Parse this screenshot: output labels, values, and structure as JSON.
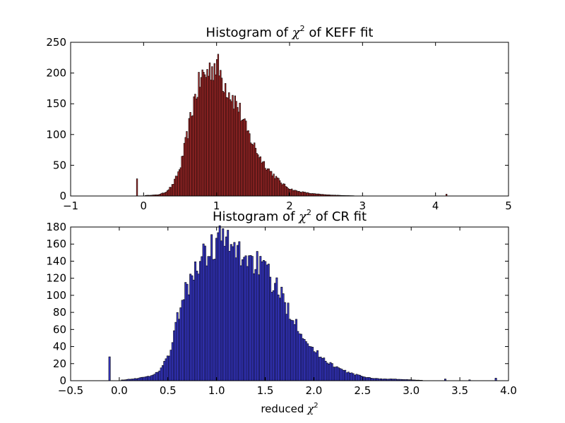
{
  "chart_data": [
    {
      "type": "bar",
      "title_pre": "Histogram of ",
      "title_sym": "χ",
      "title_sup": "2",
      "title_post": " of KEFF fit",
      "xlabel_pre": "",
      "xlabel_sym": "",
      "xlabel_sup": "",
      "xlim": [
        -1,
        5
      ],
      "ylim": [
        0,
        250
      ],
      "xticks": [
        "−1",
        "0",
        "1",
        "2",
        "3",
        "4",
        "5"
      ],
      "xtick_values": [
        -1,
        0,
        1,
        2,
        3,
        4,
        5
      ],
      "yticks": [
        "0",
        "50",
        "100",
        "150",
        "200",
        "250"
      ],
      "ytick_values": [
        0,
        50,
        100,
        150,
        200,
        250
      ],
      "bar_color": "#b82e2e",
      "outlier_bars": {
        "x": [
          -0.09,
          4.15
        ],
        "values": [
          28,
          3
        ]
      },
      "profile": {
        "x": [
          0.05,
          0.2,
          0.3,
          0.4,
          0.5,
          0.6,
          0.7,
          0.8,
          0.85,
          0.9,
          1.0,
          1.05,
          1.1,
          1.2,
          1.3,
          1.4,
          1.5,
          1.6,
          1.7,
          1.8,
          1.9,
          2.0,
          2.1,
          2.2,
          2.3,
          2.5,
          2.7,
          3.0
        ],
        "values": [
          1,
          2,
          6,
          18,
          45,
          100,
          160,
          195,
          198,
          205,
          215,
          200,
          185,
          165,
          145,
          110,
          85,
          62,
          45,
          32,
          20,
          12,
          8,
          6,
          4,
          2,
          1,
          0
        ]
      },
      "bar_range": [
        0.02,
        3.0
      ],
      "n_bars": 180
    },
    {
      "type": "bar",
      "title_pre": "Histogram of ",
      "title_sym": "χ",
      "title_sup": "2",
      "title_post": " of CR fit",
      "xlabel_pre": "reduced ",
      "xlabel_sym": "χ",
      "xlabel_sup": "2",
      "xlim": [
        -0.5,
        4.0
      ],
      "ylim": [
        0,
        180
      ],
      "xticks": [
        "−0.5",
        "0.0",
        "0.5",
        "1.0",
        "1.5",
        "2.0",
        "2.5",
        "3.0",
        "3.5",
        "4.0"
      ],
      "xtick_values": [
        -0.5,
        0.0,
        0.5,
        1.0,
        1.5,
        2.0,
        2.5,
        3.0,
        3.5,
        4.0
      ],
      "yticks": [
        "0",
        "20",
        "40",
        "60",
        "80",
        "100",
        "120",
        "140",
        "160",
        "180"
      ],
      "ytick_values": [
        0,
        20,
        40,
        60,
        80,
        100,
        120,
        140,
        160,
        180
      ],
      "bar_color": "#3838cc",
      "outlier_bars": {
        "x": [
          -0.1,
          3.35,
          3.6,
          3.87
        ],
        "values": [
          28,
          2,
          1,
          3
        ]
      },
      "profile": {
        "x": [
          0.05,
          0.2,
          0.3,
          0.4,
          0.5,
          0.55,
          0.6,
          0.7,
          0.8,
          0.9,
          1.0,
          1.05,
          1.1,
          1.2,
          1.3,
          1.4,
          1.5,
          1.6,
          1.7,
          1.8,
          1.9,
          2.0,
          2.1,
          2.2,
          2.3,
          2.4,
          2.5,
          2.6,
          2.7,
          2.8,
          3.0,
          3.2
        ],
        "values": [
          1,
          3,
          5,
          10,
          28,
          45,
          75,
          110,
          135,
          150,
          162,
          170,
          160,
          152,
          145,
          140,
          128,
          112,
          92,
          72,
          52,
          35,
          26,
          18,
          12,
          8,
          5,
          3,
          2,
          2,
          1,
          0
        ]
      },
      "bar_range": [
        0.02,
        3.2
      ],
      "n_bars": 190
    }
  ]
}
